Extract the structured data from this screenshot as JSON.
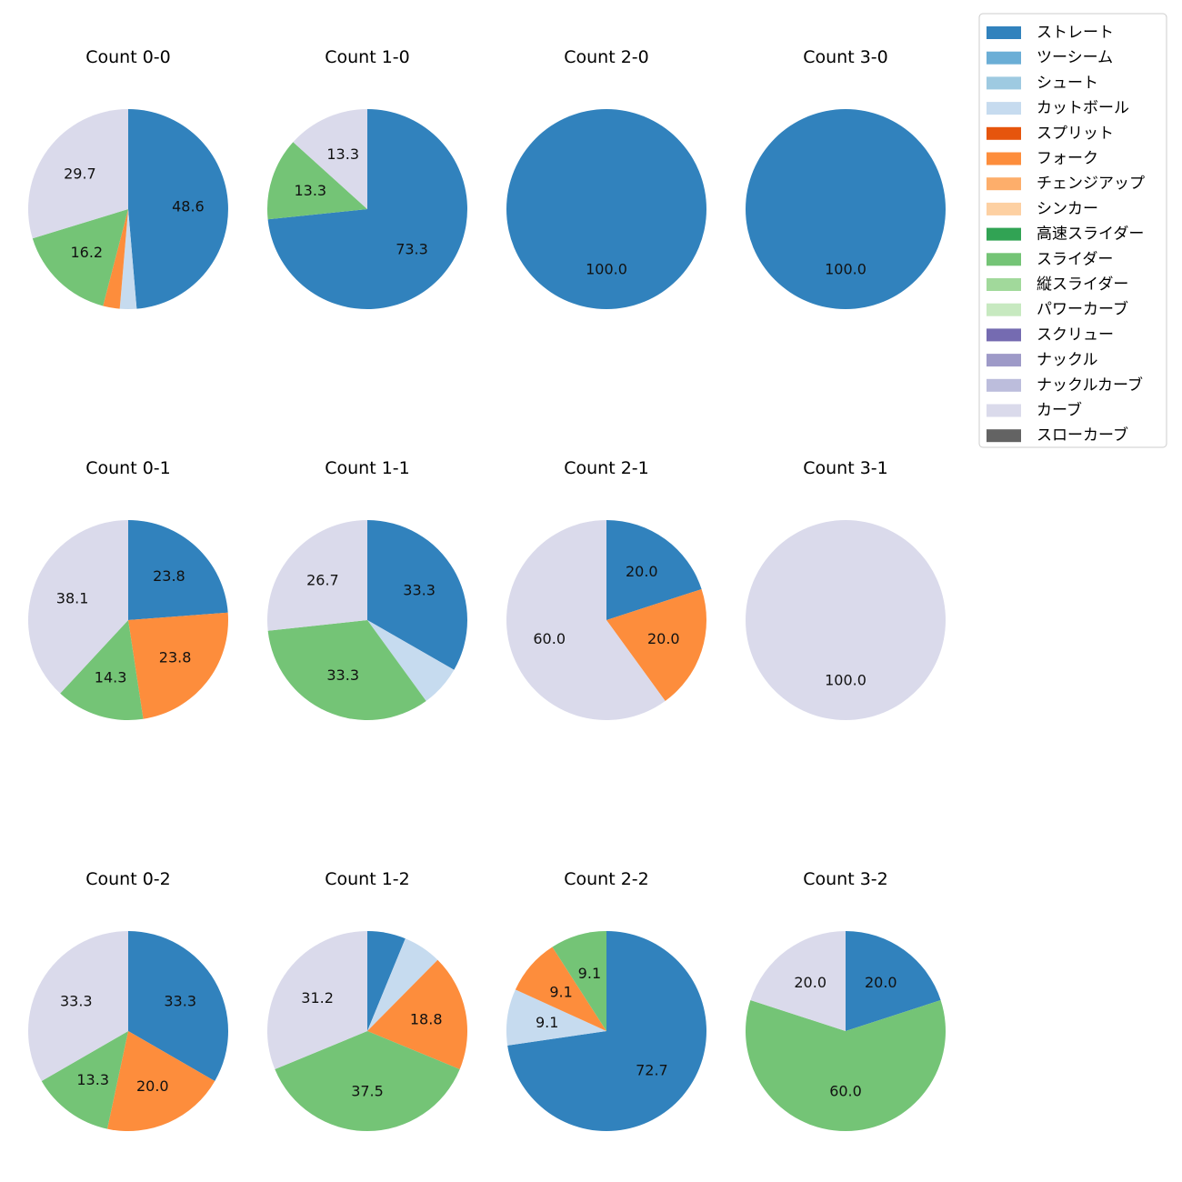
{
  "chart_data": {
    "type": "pie",
    "legend_placement": "top-right",
    "legend": [
      {
        "name": "ストレート",
        "color": "#3182bd"
      },
      {
        "name": "ツーシーム",
        "color": "#6baed6"
      },
      {
        "name": "シュート",
        "color": "#9ecae1"
      },
      {
        "name": "カットボール",
        "color": "#c6dbef"
      },
      {
        "name": "スプリット",
        "color": "#e6550d"
      },
      {
        "name": "フォーク",
        "color": "#fd8d3c"
      },
      {
        "name": "チェンジアップ",
        "color": "#fdae6b"
      },
      {
        "name": "シンカー",
        "color": "#fdd0a2"
      },
      {
        "name": "高速スライダー",
        "color": "#31a354"
      },
      {
        "name": "スライダー",
        "color": "#74c476"
      },
      {
        "name": "縦スライダー",
        "color": "#a1d99b"
      },
      {
        "name": "パワーカーブ",
        "color": "#c7e9c0"
      },
      {
        "name": "スクリュー",
        "color": "#756bb1"
      },
      {
        "name": "ナックル",
        "color": "#9e9ac8"
      },
      {
        "name": "ナックルカーブ",
        "color": "#bcbddc"
      },
      {
        "name": "カーブ",
        "color": "#dadaeb"
      },
      {
        "name": "スローカーブ",
        "color": "#636363"
      }
    ],
    "charts": [
      {
        "title": "Count 0-0",
        "slices": [
          {
            "name": "ストレート",
            "value": 48.6,
            "label": "48.6"
          },
          {
            "name": "カットボール",
            "value": 2.7,
            "label": ""
          },
          {
            "name": "フォーク",
            "value": 2.7,
            "label": ""
          },
          {
            "name": "スライダー",
            "value": 16.2,
            "label": "16.2"
          },
          {
            "name": "カーブ",
            "value": 29.7,
            "label": "29.7"
          }
        ]
      },
      {
        "title": "Count 1-0",
        "slices": [
          {
            "name": "ストレート",
            "value": 73.3,
            "label": "73.3"
          },
          {
            "name": "スライダー",
            "value": 13.3,
            "label": "13.3"
          },
          {
            "name": "カーブ",
            "value": 13.3,
            "label": "13.3"
          }
        ]
      },
      {
        "title": "Count 2-0",
        "slices": [
          {
            "name": "ストレート",
            "value": 100.0,
            "label": "100.0"
          }
        ]
      },
      {
        "title": "Count 3-0",
        "slices": [
          {
            "name": "ストレート",
            "value": 100.0,
            "label": "100.0"
          }
        ]
      },
      {
        "title": "Count 0-1",
        "slices": [
          {
            "name": "ストレート",
            "value": 23.8,
            "label": "23.8"
          },
          {
            "name": "フォーク",
            "value": 23.8,
            "label": "23.8"
          },
          {
            "name": "スライダー",
            "value": 14.3,
            "label": "14.3"
          },
          {
            "name": "カーブ",
            "value": 38.1,
            "label": "38.1"
          }
        ]
      },
      {
        "title": "Count 1-1",
        "slices": [
          {
            "name": "ストレート",
            "value": 33.3,
            "label": "33.3"
          },
          {
            "name": "カットボール",
            "value": 6.7,
            "label": ""
          },
          {
            "name": "スライダー",
            "value": 33.3,
            "label": "33.3"
          },
          {
            "name": "カーブ",
            "value": 26.7,
            "label": "26.7"
          }
        ]
      },
      {
        "title": "Count 2-1",
        "slices": [
          {
            "name": "ストレート",
            "value": 20.0,
            "label": "20.0"
          },
          {
            "name": "フォーク",
            "value": 20.0,
            "label": "20.0"
          },
          {
            "name": "カーブ",
            "value": 60.0,
            "label": "60.0"
          }
        ]
      },
      {
        "title": "Count 3-1",
        "slices": [
          {
            "name": "カーブ",
            "value": 100.0,
            "label": "100.0"
          }
        ]
      },
      {
        "title": "Count 0-2",
        "slices": [
          {
            "name": "ストレート",
            "value": 33.3,
            "label": "33.3"
          },
          {
            "name": "フォーク",
            "value": 20.0,
            "label": "20.0"
          },
          {
            "name": "スライダー",
            "value": 13.3,
            "label": "13.3"
          },
          {
            "name": "カーブ",
            "value": 33.3,
            "label": "33.3"
          }
        ]
      },
      {
        "title": "Count 1-2",
        "slices": [
          {
            "name": "ストレート",
            "value": 6.2,
            "label": ""
          },
          {
            "name": "カットボール",
            "value": 6.2,
            "label": ""
          },
          {
            "name": "フォーク",
            "value": 18.8,
            "label": "18.8"
          },
          {
            "name": "スライダー",
            "value": 37.5,
            "label": "37.5"
          },
          {
            "name": "カーブ",
            "value": 31.2,
            "label": "31.2"
          }
        ]
      },
      {
        "title": "Count 2-2",
        "slices": [
          {
            "name": "ストレート",
            "value": 72.7,
            "label": "72.7"
          },
          {
            "name": "カットボール",
            "value": 9.1,
            "label": "9.1"
          },
          {
            "name": "フォーク",
            "value": 9.1,
            "label": "9.1"
          },
          {
            "name": "スライダー",
            "value": 9.1,
            "label": "9.1"
          }
        ]
      },
      {
        "title": "Count 3-2",
        "slices": [
          {
            "name": "ストレート",
            "value": 20.0,
            "label": "20.0"
          },
          {
            "name": "スライダー",
            "value": 60.0,
            "label": "60.0"
          },
          {
            "name": "カーブ",
            "value": 20.0,
            "label": "20.0"
          }
        ]
      }
    ]
  }
}
